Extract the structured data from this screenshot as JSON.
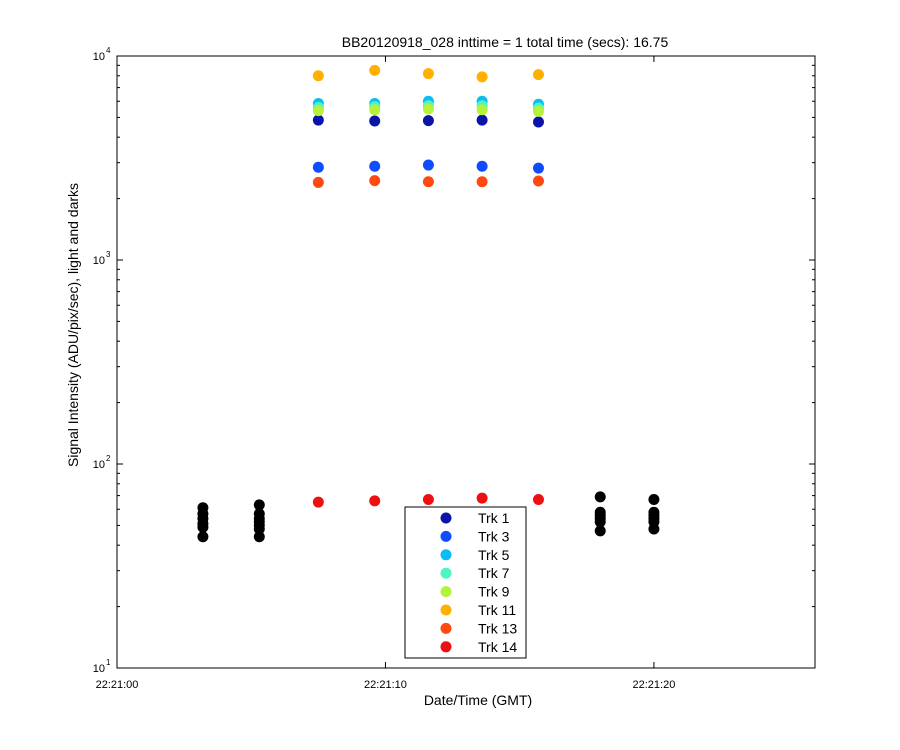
{
  "chart_data": {
    "type": "scatter",
    "title": "BB20120918_028 inttime = 1 total time (secs): 16.75",
    "xlabel": "Date/Time (GMT)",
    "ylabel": "Signal Intensity (ADU/pix/sec), light and darks",
    "x_unit": "seconds after 22:21:00",
    "xlim": [
      0,
      26
    ],
    "ylim": [
      10,
      10000
    ],
    "yscale": "log",
    "x_ticks": [
      {
        "value": 0,
        "label": "22:21:00"
      },
      {
        "value": 10,
        "label": "22:21:10"
      },
      {
        "value": 20,
        "label": "22:21:20"
      }
    ],
    "y_ticks": [
      {
        "value": 10,
        "base": "10",
        "exp": "1"
      },
      {
        "value": 100,
        "base": "10",
        "exp": "2"
      },
      {
        "value": 1000,
        "base": "10",
        "exp": "3"
      },
      {
        "value": 10000,
        "base": "10",
        "exp": "4"
      }
    ],
    "grid": false,
    "legend_position": "bottom-center",
    "series": [
      {
        "name": "Trk 1",
        "color": "#0a14a8",
        "x": [
          7.5,
          9.6,
          11.6,
          13.6,
          15.7
        ],
        "y": [
          4850,
          4800,
          4820,
          4850,
          4750
        ]
      },
      {
        "name": "Trk 3",
        "color": "#0f4cff",
        "x": [
          7.5,
          9.6,
          11.6,
          13.6,
          15.7
        ],
        "y": [
          2850,
          2880,
          2920,
          2880,
          2820
        ]
      },
      {
        "name": "Trk 5",
        "color": "#0cbdf2",
        "x": [
          7.5,
          9.6,
          11.6,
          13.6,
          15.7
        ],
        "y": [
          5850,
          5850,
          6000,
          6000,
          5800
        ]
      },
      {
        "name": "Trk 7",
        "color": "#4ef5c4",
        "x": [
          7.5,
          9.6,
          11.6,
          13.6,
          15.7
        ],
        "y": [
          5600,
          5650,
          5700,
          5700,
          5550
        ]
      },
      {
        "name": "Trk 9",
        "color": "#b5f23c",
        "x": [
          7.5,
          9.6,
          11.6,
          13.6,
          15.7
        ],
        "y": [
          5400,
          5450,
          5500,
          5450,
          5350
        ]
      },
      {
        "name": "Trk 11",
        "color": "#ffb000",
        "x": [
          7.5,
          9.6,
          11.6,
          13.6,
          15.7
        ],
        "y": [
          8000,
          8500,
          8200,
          7900,
          8100
        ]
      },
      {
        "name": "Trk 13",
        "color": "#ff4a0f",
        "x": [
          7.5,
          9.6,
          11.6,
          13.6,
          15.7
        ],
        "y": [
          2400,
          2450,
          2420,
          2420,
          2440
        ]
      },
      {
        "name": "Trk 14",
        "color": "#ee1010",
        "x": [
          7.5,
          9.6,
          11.6,
          13.6,
          15.7
        ],
        "y": [
          65,
          66,
          67,
          68,
          67
        ]
      },
      {
        "color": "#000000",
        "x": [
          3.2,
          3.2,
          3.2,
          3.2,
          3.2,
          3.2,
          5.3,
          5.3,
          5.3,
          5.3,
          5.3,
          5.3,
          5.3,
          18.0,
          18.0,
          18.0,
          18.0,
          18.0,
          18.0,
          20.0,
          20.0,
          20.0,
          20.0,
          20.0,
          20.0
        ],
        "y": [
          44,
          49,
          51,
          54,
          57,
          61,
          44,
          48,
          50,
          52,
          54,
          57,
          63,
          47,
          52,
          54,
          56,
          58,
          69,
          48,
          52,
          54,
          56,
          58,
          67
        ]
      }
    ]
  }
}
